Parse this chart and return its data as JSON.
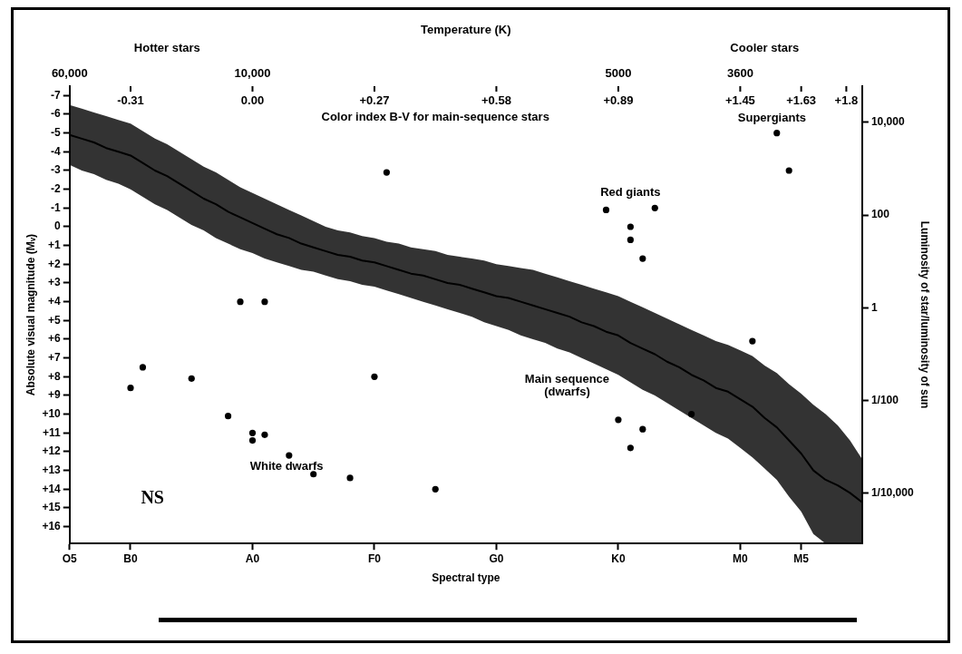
{
  "chart_data": {
    "type": "scatter",
    "xlabel": "Spectral type",
    "ylabel": "Absolute visual magnitude (Mᵥ)",
    "y2label": "Luminosity of star/luminosity of sun",
    "categories": [
      "O5",
      null,
      null,
      null,
      null,
      "B0",
      null,
      null,
      null,
      null,
      null,
      null,
      null,
      null,
      null,
      "A0",
      null,
      null,
      null,
      null,
      null,
      null,
      null,
      null,
      null,
      "F0",
      null,
      null,
      null,
      null,
      null,
      null,
      null,
      null,
      null,
      "G0",
      null,
      null,
      null,
      null,
      null,
      null,
      null,
      null,
      null,
      "K0",
      null,
      null,
      null,
      null,
      null,
      null,
      null,
      null,
      null,
      "M0",
      null,
      null,
      null,
      null,
      "M5",
      null,
      null,
      null,
      null,
      null
    ],
    "ylim": [
      16.9,
      -7.5
    ],
    "yticks": [
      -7,
      -6,
      -5,
      -4,
      -3,
      -2,
      -1,
      0,
      {
        "value": 1,
        "label": "+1"
      },
      {
        "value": 2,
        "label": "+2"
      },
      {
        "value": 3,
        "label": "+3"
      },
      {
        "value": 4,
        "label": "+4"
      },
      {
        "value": 5,
        "label": "+5"
      },
      {
        "value": 6,
        "label": "+6"
      },
      {
        "value": 7,
        "label": "+7"
      },
      {
        "value": 8,
        "label": "+8"
      },
      {
        "value": 9,
        "label": "+9"
      },
      {
        "value": 10,
        "label": "+10"
      },
      {
        "value": 11,
        "label": "+11"
      },
      {
        "value": 12,
        "label": "+12"
      },
      {
        "value": 13,
        "label": "+13"
      },
      {
        "value": 14,
        "label": "+14"
      },
      {
        "value": 15,
        "label": "+15"
      },
      {
        "value": 16,
        "label": "+16"
      }
    ],
    "y2lim": [
      8.3e-06,
      60000
    ],
    "y2ticks": [
      {
        "value": 10000,
        "label": "10,000"
      },
      100,
      1,
      {
        "value": 0.01,
        "label": "1/100"
      },
      {
        "value": 0.0001,
        "label": "1/10,000"
      }
    ],
    "log": "y2",
    "grid": false,
    "legend": false,
    "marker": "circle",
    "series": [
      {
        "type": "line",
        "color": "#000000",
        "marker": "none",
        "values": [
          -4.9,
          -4.7,
          -4.5,
          -4.2,
          -4.0,
          -3.8,
          -3.4,
          -3.0,
          -2.7,
          -2.3,
          -1.9,
          -1.5,
          -1.2,
          -0.8,
          -0.5,
          -0.2,
          0.1,
          0.4,
          0.6,
          0.9,
          1.1,
          1.3,
          1.5,
          1.6,
          1.8,
          1.9,
          2.1,
          2.3,
          2.5,
          2.6,
          2.8,
          3.0,
          3.1,
          3.3,
          3.5,
          3.7,
          3.8,
          4.0,
          4.2,
          4.4,
          4.6,
          4.8,
          5.1,
          5.3,
          5.6,
          5.8,
          6.2,
          6.5,
          6.8,
          7.2,
          7.5,
          7.9,
          8.2,
          8.6,
          8.8,
          9.2,
          9.6,
          10.2,
          10.7,
          11.4,
          12.1,
          13.0,
          13.5,
          13.8,
          14.2,
          14.7
        ],
        "lower": [
          -6.5,
          -6.3,
          -6.1,
          -5.9,
          -5.7,
          -5.5,
          -5.1,
          -4.7,
          -4.4,
          -4.0,
          -3.6,
          -3.2,
          -2.9,
          -2.5,
          -2.1,
          -1.8,
          -1.5,
          -1.2,
          -0.9,
          -0.6,
          -0.3,
          0.0,
          0.2,
          0.3,
          0.5,
          0.6,
          0.8,
          0.9,
          1.1,
          1.2,
          1.3,
          1.5,
          1.6,
          1.7,
          1.8,
          2.0,
          2.1,
          2.2,
          2.3,
          2.5,
          2.7,
          2.9,
          3.1,
          3.3,
          3.5,
          3.7,
          4.0,
          4.3,
          4.6,
          4.9,
          5.2,
          5.5,
          5.8,
          6.1,
          6.3,
          6.6,
          6.9,
          7.4,
          7.8,
          8.4,
          8.9,
          9.5,
          10.0,
          10.6,
          11.4,
          12.4
        ],
        "upper": [
          -3.3,
          -3.0,
          -2.8,
          -2.5,
          -2.3,
          -2.0,
          -1.6,
          -1.2,
          -0.9,
          -0.5,
          -0.1,
          0.2,
          0.6,
          0.9,
          1.2,
          1.4,
          1.7,
          1.9,
          2.1,
          2.3,
          2.4,
          2.6,
          2.8,
          2.9,
          3.1,
          3.2,
          3.4,
          3.6,
          3.8,
          4.0,
          4.2,
          4.4,
          4.6,
          4.8,
          5.1,
          5.3,
          5.5,
          5.8,
          6.0,
          6.2,
          6.5,
          6.7,
          7.0,
          7.3,
          7.6,
          7.9,
          8.3,
          8.7,
          9.0,
          9.4,
          9.8,
          10.2,
          10.6,
          11.0,
          11.3,
          11.8,
          12.3,
          12.9,
          13.5,
          14.4,
          15.2,
          16.4,
          16.9,
          16.9,
          16.9,
          16.9
        ]
      },
      {
        "color": "#000000",
        "values": [
          null,
          null,
          null,
          null,
          null,
          8.6,
          7.5,
          null,
          null,
          null,
          8.1,
          null,
          null,
          10.1,
          4.0,
          11.0,
          4.0,
          null,
          12.2,
          null,
          13.2,
          null,
          null,
          13.4,
          null,
          8.0,
          -2.9,
          null,
          null,
          null,
          14.0,
          null,
          null,
          null,
          null,
          null,
          null,
          null,
          null,
          null,
          null,
          null,
          null,
          null,
          -0.9,
          10.3,
          0.0,
          1.7,
          -1.0,
          null,
          null,
          10.0,
          null,
          null,
          null,
          null,
          6.1,
          null,
          -5.0,
          -3.0,
          null,
          null,
          null,
          null,
          null,
          null
        ]
      },
      {
        "color": "#000000",
        "values": [
          null,
          null,
          null,
          null,
          null,
          null,
          null,
          null,
          null,
          null,
          null,
          null,
          null,
          null,
          null,
          11.4,
          11.1,
          null,
          null,
          null,
          null,
          null,
          null,
          null,
          null,
          null,
          null,
          null,
          null,
          null,
          null,
          null,
          null,
          null,
          null,
          null,
          null,
          null,
          null,
          null,
          null,
          null,
          null,
          null,
          null,
          null,
          0.7,
          10.8,
          null,
          null,
          null,
          null,
          null,
          null,
          null,
          null,
          null,
          null,
          null,
          null,
          null,
          null,
          null,
          null,
          null,
          null
        ]
      },
      {
        "color": "#000000",
        "values": [
          null,
          null,
          null,
          null,
          null,
          null,
          null,
          null,
          null,
          null,
          null,
          null,
          null,
          null,
          null,
          null,
          null,
          null,
          null,
          null,
          null,
          null,
          null,
          null,
          null,
          null,
          null,
          null,
          null,
          null,
          null,
          null,
          null,
          null,
          null,
          null,
          null,
          null,
          null,
          null,
          null,
          null,
          null,
          null,
          null,
          null,
          11.8,
          null,
          null,
          null,
          null,
          null,
          null,
          null,
          null,
          null,
          null,
          null,
          null,
          null,
          null,
          null,
          null,
          null,
          null,
          null
        ]
      }
    ],
    "annotations": [
      "Temperature (K)",
      "Hotter stars",
      "Cooler stars",
      "60,000",
      "10,000",
      "5000",
      "3600",
      "-0.31",
      "0.00",
      "+0.27",
      "+0.58",
      "+0.89",
      "+1.45",
      "+1.63",
      "+1.8",
      "Color index B-V for main-sequence stars",
      "Supergiants",
      "Red giants",
      "Main sequence\n(dwarfs)",
      "White dwarfs",
      "NS"
    ]
  }
}
